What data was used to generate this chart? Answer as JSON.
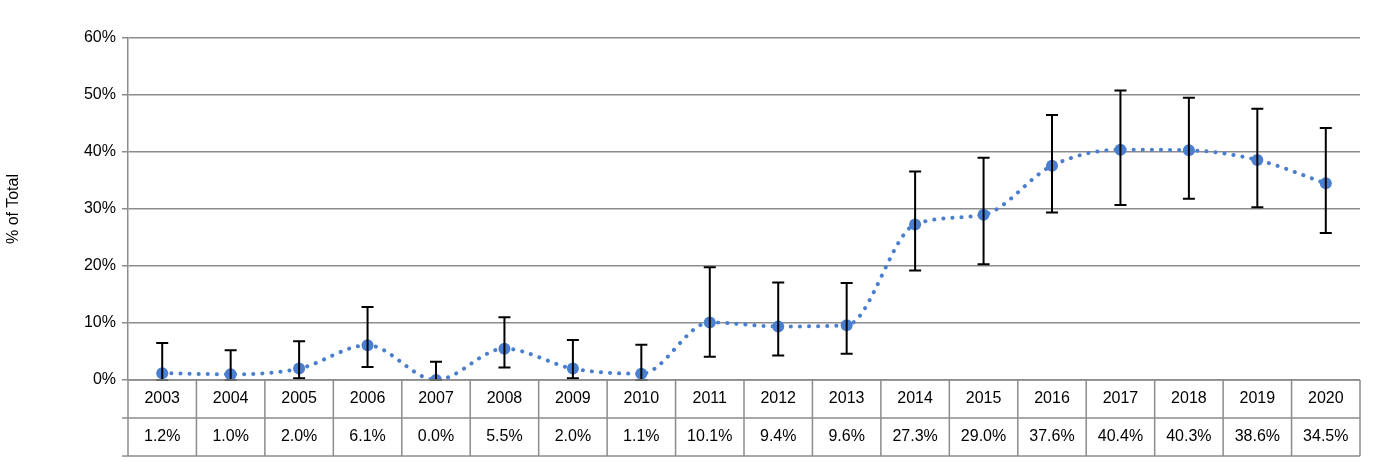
{
  "chart_data": {
    "type": "line",
    "ylabel": "% of Total",
    "categories": [
      "2003",
      "2004",
      "2005",
      "2006",
      "2007",
      "2008",
      "2009",
      "2010",
      "2011",
      "2012",
      "2013",
      "2014",
      "2015",
      "2016",
      "2017",
      "2018",
      "2019",
      "2020"
    ],
    "values": [
      1.2,
      1.0,
      2.0,
      6.1,
      0.0,
      5.5,
      2.0,
      1.1,
      10.1,
      9.4,
      9.6,
      27.3,
      29.0,
      37.6,
      40.4,
      40.3,
      38.6,
      34.5
    ],
    "value_labels": [
      "1.2%",
      "1.0%",
      "2.0%",
      "6.1%",
      "0.0%",
      "5.5%",
      "2.0%",
      "1.1%",
      "10.1%",
      "9.4%",
      "9.6%",
      "27.3%",
      "29.0%",
      "37.6%",
      "40.4%",
      "40.3%",
      "38.6%",
      "34.5%"
    ],
    "errors": [
      [
        0,
        6.5
      ],
      [
        0,
        5.2
      ],
      [
        0.3,
        6.8
      ],
      [
        2.3,
        12.8
      ],
      [
        0,
        3.2
      ],
      [
        2.2,
        11.0
      ],
      [
        0.3,
        7.0
      ],
      [
        0,
        6.2
      ],
      [
        4.1,
        19.8
      ],
      [
        4.3,
        17.1
      ],
      [
        4.6,
        17.0
      ],
      [
        19.2,
        36.6
      ],
      [
        20.3,
        39.0
      ],
      [
        29.4,
        46.5
      ],
      [
        30.7,
        50.8
      ],
      [
        31.8,
        49.5
      ],
      [
        30.3,
        47.6
      ],
      [
        25.8,
        44.2
      ]
    ],
    "color": "#4a7fd0",
    "marker": "circle",
    "line_style": "dotted",
    "grid": "y",
    "legend": false,
    "ylim": [
      0,
      60
    ],
    "yticks": [
      {
        "value": 0,
        "label": "0%"
      },
      {
        "value": 10,
        "label": "10%"
      },
      {
        "value": 20,
        "label": "20%"
      },
      {
        "value": 30,
        "label": "30%"
      },
      {
        "value": 40,
        "label": "40%"
      },
      {
        "value": 50,
        "label": "50%"
      },
      {
        "value": 60,
        "label": "60%"
      }
    ]
  }
}
